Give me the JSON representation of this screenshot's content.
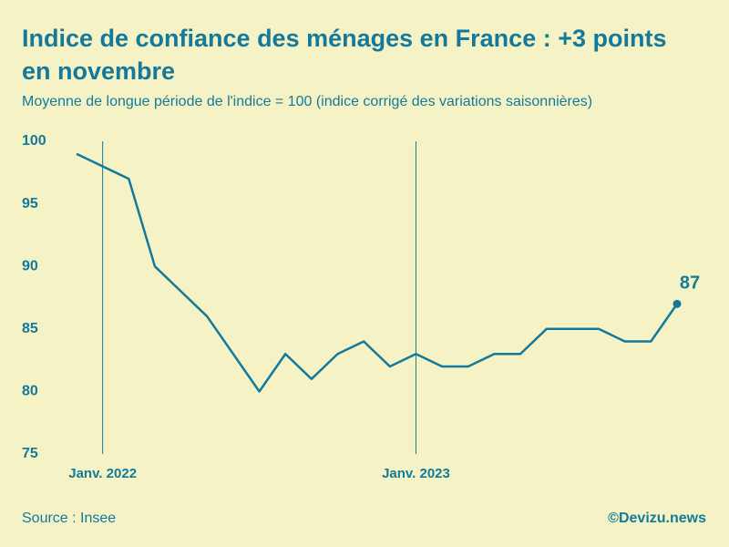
{
  "chart_data": {
    "type": "line",
    "title_lines": [
      "Indice de confiance des ménages en France : +3 points",
      "en novembre"
    ],
    "subtitle": "Moyenne de longue période de l'indice = 100 (indice corrigé des variations saisonnières)",
    "categories": [
      null,
      "Janv. 2022",
      null,
      null,
      null,
      null,
      null,
      null,
      null,
      null,
      null,
      null,
      null,
      "Janv. 2023",
      null,
      null,
      null,
      null,
      null,
      null,
      null,
      null,
      null,
      null
    ],
    "series": [
      {
        "name": "Indice",
        "color": "#14799a",
        "values": [
          99,
          98,
          97,
          90,
          88,
          86,
          83,
          80,
          83,
          81,
          83,
          84,
          82,
          83,
          82,
          82,
          83,
          83,
          85,
          85,
          85,
          84,
          84,
          87
        ]
      }
    ],
    "ylim": [
      75,
      100
    ],
    "yticks": [
      75,
      80,
      85,
      90,
      95,
      100
    ],
    "source": "Source : Insee",
    "credit": "©Devizu.news"
  }
}
